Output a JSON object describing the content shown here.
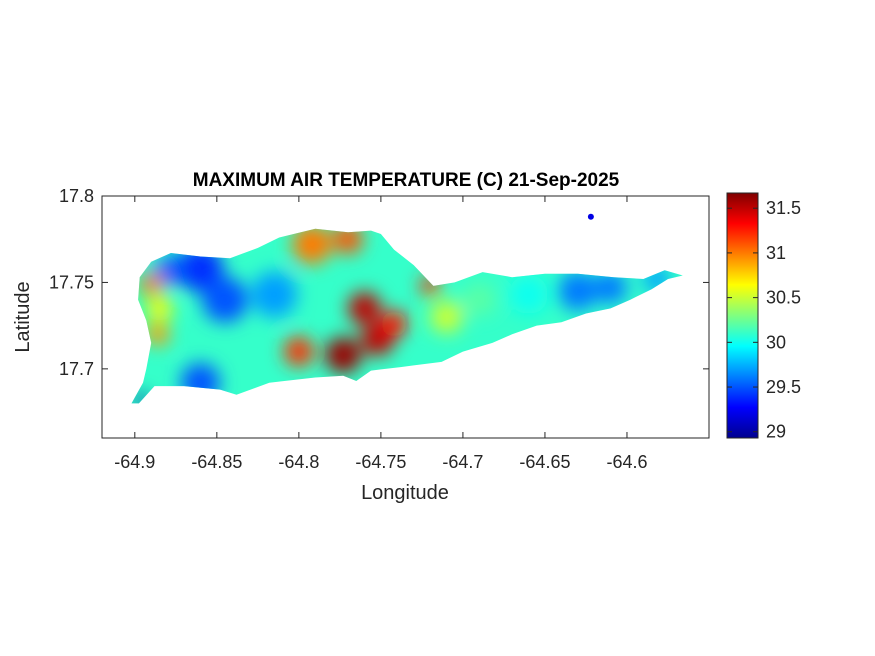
{
  "map": {
    "title": "MAXIMUM AIR TEMPERATURE (C) 21-Sep-2025",
    "xlabel": "Longitude",
    "ylabel": "Latitude",
    "xlim": [
      -64.92,
      -64.55
    ],
    "ylim": [
      17.66,
      17.8
    ],
    "xticks": [
      {
        "value": -64.9,
        "label": "-64.9"
      },
      {
        "value": -64.85,
        "label": "-64.85"
      },
      {
        "value": -64.8,
        "label": "-64.8"
      },
      {
        "value": -64.75,
        "label": "-64.75"
      },
      {
        "value": -64.7,
        "label": "-64.7"
      },
      {
        "value": -64.65,
        "label": "-64.65"
      },
      {
        "value": -64.6,
        "label": "-64.6"
      }
    ],
    "yticks": [
      {
        "value": 17.7,
        "label": "17.7"
      },
      {
        "value": 17.75,
        "label": "17.75"
      },
      {
        "value": 17.8,
        "label": "17.8"
      }
    ],
    "colormap": "jet",
    "box": true,
    "grid": false
  },
  "colorbar": {
    "range": [
      28.93,
      31.67
    ],
    "ticks": [
      {
        "value": 29,
        "label": "29"
      },
      {
        "value": 29.5,
        "label": "29.5"
      },
      {
        "value": 30,
        "label": "30"
      },
      {
        "value": 30.5,
        "label": "30.5"
      },
      {
        "value": 31,
        "label": "31"
      },
      {
        "value": 31.5,
        "label": "31.5"
      }
    ]
  },
  "chart_data": {
    "type": "heatmap",
    "variable": "MAXIMUM AIR TEMPERATURE (C)",
    "date": "21-Sep-2025",
    "units": "C",
    "value_range": [
      28.93,
      31.67
    ],
    "coastline": [
      [
        -64.8975,
        17.68
      ],
      [
        -64.888,
        17.69
      ],
      [
        -64.87,
        17.69
      ],
      [
        -64.848,
        17.688
      ],
      [
        -64.838,
        17.685
      ],
      [
        -64.818,
        17.692
      ],
      [
        -64.79,
        17.695
      ],
      [
        -64.773,
        17.696
      ],
      [
        -64.765,
        17.693
      ],
      [
        -64.756,
        17.699
      ],
      [
        -64.738,
        17.701
      ],
      [
        -64.73,
        17.702
      ],
      [
        -64.713,
        17.704
      ],
      [
        -64.7,
        17.71
      ],
      [
        -64.682,
        17.715
      ],
      [
        -64.67,
        17.72
      ],
      [
        -64.655,
        17.725
      ],
      [
        -64.64,
        17.727
      ],
      [
        -64.625,
        17.732
      ],
      [
        -64.61,
        17.735
      ],
      [
        -64.598,
        17.74
      ],
      [
        -64.585,
        17.746
      ],
      [
        -64.575,
        17.752
      ],
      [
        -64.566,
        17.754
      ],
      [
        -64.577,
        17.757
      ],
      [
        -64.59,
        17.752
      ],
      [
        -64.608,
        17.753
      ],
      [
        -64.63,
        17.755
      ],
      [
        -64.65,
        17.755
      ],
      [
        -64.67,
        17.753
      ],
      [
        -64.688,
        17.756
      ],
      [
        -64.705,
        17.75
      ],
      [
        -64.718,
        17.748
      ],
      [
        -64.73,
        17.76
      ],
      [
        -64.742,
        17.769
      ],
      [
        -64.75,
        17.778
      ],
      [
        -64.756,
        17.78
      ],
      [
        -64.77,
        17.779
      ],
      [
        -64.79,
        17.781
      ],
      [
        -64.812,
        17.776
      ],
      [
        -64.825,
        17.77
      ],
      [
        -64.842,
        17.764
      ],
      [
        -64.86,
        17.765
      ],
      [
        -64.878,
        17.767
      ],
      [
        -64.89,
        17.762
      ],
      [
        -64.897,
        17.753
      ],
      [
        -64.898,
        17.74
      ],
      [
        -64.893,
        17.728
      ],
      [
        -64.89,
        17.715
      ],
      [
        -64.893,
        17.7
      ],
      [
        -64.895,
        17.692
      ],
      [
        -64.902,
        17.68
      ]
    ],
    "features": [
      {
        "lon": -64.86,
        "lat": 17.758,
        "value": 29.4,
        "radius": 0.014
      },
      {
        "lon": -64.878,
        "lat": 17.757,
        "value": 29.5,
        "radius": 0.009
      },
      {
        "lon": -64.845,
        "lat": 17.74,
        "value": 29.5,
        "radius": 0.014
      },
      {
        "lon": -64.86,
        "lat": 17.692,
        "value": 29.5,
        "radius": 0.012
      },
      {
        "lon": -64.815,
        "lat": 17.743,
        "value": 29.7,
        "radius": 0.014
      },
      {
        "lon": -64.89,
        "lat": 17.749,
        "value": 31.0,
        "radius": 0.007
      },
      {
        "lon": -64.886,
        "lat": 17.72,
        "value": 30.9,
        "radius": 0.007
      },
      {
        "lon": -64.8,
        "lat": 17.71,
        "value": 31.2,
        "radius": 0.009
      },
      {
        "lon": -64.792,
        "lat": 17.772,
        "value": 31.0,
        "radius": 0.012
      },
      {
        "lon": -64.77,
        "lat": 17.775,
        "value": 31.1,
        "radius": 0.009
      },
      {
        "lon": -64.773,
        "lat": 17.708,
        "value": 31.6,
        "radius": 0.011
      },
      {
        "lon": -64.76,
        "lat": 17.735,
        "value": 31.5,
        "radius": 0.01
      },
      {
        "lon": -64.752,
        "lat": 17.717,
        "value": 31.5,
        "radius": 0.01
      },
      {
        "lon": -64.742,
        "lat": 17.726,
        "value": 31.3,
        "radius": 0.008
      },
      {
        "lon": -64.72,
        "lat": 17.748,
        "value": 31.2,
        "radius": 0.006
      },
      {
        "lon": -64.71,
        "lat": 17.73,
        "value": 30.5,
        "radius": 0.01
      },
      {
        "lon": -64.69,
        "lat": 17.74,
        "value": 30.2,
        "radius": 0.01
      },
      {
        "lon": -64.66,
        "lat": 17.743,
        "value": 30.0,
        "radius": 0.012
      },
      {
        "lon": -64.63,
        "lat": 17.745,
        "value": 29.6,
        "radius": 0.012
      },
      {
        "lon": -64.61,
        "lat": 17.747,
        "value": 29.6,
        "radius": 0.01
      },
      {
        "lon": -64.582,
        "lat": 17.752,
        "value": 29.7,
        "radius": 0.008
      },
      {
        "lon": -64.896,
        "lat": 17.682,
        "value": 29.0,
        "radius": 0.004
      },
      {
        "lon": -64.885,
        "lat": 17.735,
        "value": 30.6,
        "radius": 0.008
      }
    ],
    "islet": {
      "lon": -64.622,
      "lat": 17.788,
      "value": 29.2
    },
    "base_value": 30.1,
    "colorbar_ticks": [
      29,
      29.5,
      30,
      30.5,
      31,
      31.5
    ]
  }
}
